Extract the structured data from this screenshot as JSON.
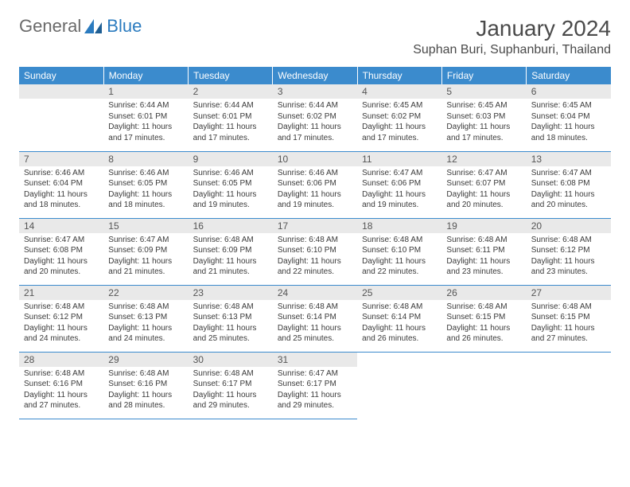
{
  "brand": {
    "part1": "General",
    "part2": "Blue"
  },
  "title": "January 2024",
  "location": "Suphan Buri, Suphanburi, Thailand",
  "colors": {
    "header_bg": "#3b8bcd",
    "header_text": "#ffffff",
    "daynum_bg": "#e9e9e9",
    "text": "#3a3a3a",
    "rule": "#3b8bcd",
    "brand_gray": "#6a6a6a",
    "brand_blue": "#2b7bbf"
  },
  "typography": {
    "title_fontsize": 28,
    "location_fontsize": 16,
    "header_fontsize": 12,
    "body_fontsize": 10
  },
  "weekdays": [
    "Sunday",
    "Monday",
    "Tuesday",
    "Wednesday",
    "Thursday",
    "Friday",
    "Saturday"
  ],
  "weeks": [
    [
      null,
      {
        "n": "1",
        "sr": "Sunrise: 6:44 AM",
        "ss": "Sunset: 6:01 PM",
        "d1": "Daylight: 11 hours",
        "d2": "and 17 minutes."
      },
      {
        "n": "2",
        "sr": "Sunrise: 6:44 AM",
        "ss": "Sunset: 6:01 PM",
        "d1": "Daylight: 11 hours",
        "d2": "and 17 minutes."
      },
      {
        "n": "3",
        "sr": "Sunrise: 6:44 AM",
        "ss": "Sunset: 6:02 PM",
        "d1": "Daylight: 11 hours",
        "d2": "and 17 minutes."
      },
      {
        "n": "4",
        "sr": "Sunrise: 6:45 AM",
        "ss": "Sunset: 6:02 PM",
        "d1": "Daylight: 11 hours",
        "d2": "and 17 minutes."
      },
      {
        "n": "5",
        "sr": "Sunrise: 6:45 AM",
        "ss": "Sunset: 6:03 PM",
        "d1": "Daylight: 11 hours",
        "d2": "and 17 minutes."
      },
      {
        "n": "6",
        "sr": "Sunrise: 6:45 AM",
        "ss": "Sunset: 6:04 PM",
        "d1": "Daylight: 11 hours",
        "d2": "and 18 minutes."
      }
    ],
    [
      {
        "n": "7",
        "sr": "Sunrise: 6:46 AM",
        "ss": "Sunset: 6:04 PM",
        "d1": "Daylight: 11 hours",
        "d2": "and 18 minutes."
      },
      {
        "n": "8",
        "sr": "Sunrise: 6:46 AM",
        "ss": "Sunset: 6:05 PM",
        "d1": "Daylight: 11 hours",
        "d2": "and 18 minutes."
      },
      {
        "n": "9",
        "sr": "Sunrise: 6:46 AM",
        "ss": "Sunset: 6:05 PM",
        "d1": "Daylight: 11 hours",
        "d2": "and 19 minutes."
      },
      {
        "n": "10",
        "sr": "Sunrise: 6:46 AM",
        "ss": "Sunset: 6:06 PM",
        "d1": "Daylight: 11 hours",
        "d2": "and 19 minutes."
      },
      {
        "n": "11",
        "sr": "Sunrise: 6:47 AM",
        "ss": "Sunset: 6:06 PM",
        "d1": "Daylight: 11 hours",
        "d2": "and 19 minutes."
      },
      {
        "n": "12",
        "sr": "Sunrise: 6:47 AM",
        "ss": "Sunset: 6:07 PM",
        "d1": "Daylight: 11 hours",
        "d2": "and 20 minutes."
      },
      {
        "n": "13",
        "sr": "Sunrise: 6:47 AM",
        "ss": "Sunset: 6:08 PM",
        "d1": "Daylight: 11 hours",
        "d2": "and 20 minutes."
      }
    ],
    [
      {
        "n": "14",
        "sr": "Sunrise: 6:47 AM",
        "ss": "Sunset: 6:08 PM",
        "d1": "Daylight: 11 hours",
        "d2": "and 20 minutes."
      },
      {
        "n": "15",
        "sr": "Sunrise: 6:47 AM",
        "ss": "Sunset: 6:09 PM",
        "d1": "Daylight: 11 hours",
        "d2": "and 21 minutes."
      },
      {
        "n": "16",
        "sr": "Sunrise: 6:48 AM",
        "ss": "Sunset: 6:09 PM",
        "d1": "Daylight: 11 hours",
        "d2": "and 21 minutes."
      },
      {
        "n": "17",
        "sr": "Sunrise: 6:48 AM",
        "ss": "Sunset: 6:10 PM",
        "d1": "Daylight: 11 hours",
        "d2": "and 22 minutes."
      },
      {
        "n": "18",
        "sr": "Sunrise: 6:48 AM",
        "ss": "Sunset: 6:10 PM",
        "d1": "Daylight: 11 hours",
        "d2": "and 22 minutes."
      },
      {
        "n": "19",
        "sr": "Sunrise: 6:48 AM",
        "ss": "Sunset: 6:11 PM",
        "d1": "Daylight: 11 hours",
        "d2": "and 23 minutes."
      },
      {
        "n": "20",
        "sr": "Sunrise: 6:48 AM",
        "ss": "Sunset: 6:12 PM",
        "d1": "Daylight: 11 hours",
        "d2": "and 23 minutes."
      }
    ],
    [
      {
        "n": "21",
        "sr": "Sunrise: 6:48 AM",
        "ss": "Sunset: 6:12 PM",
        "d1": "Daylight: 11 hours",
        "d2": "and 24 minutes."
      },
      {
        "n": "22",
        "sr": "Sunrise: 6:48 AM",
        "ss": "Sunset: 6:13 PM",
        "d1": "Daylight: 11 hours",
        "d2": "and 24 minutes."
      },
      {
        "n": "23",
        "sr": "Sunrise: 6:48 AM",
        "ss": "Sunset: 6:13 PM",
        "d1": "Daylight: 11 hours",
        "d2": "and 25 minutes."
      },
      {
        "n": "24",
        "sr": "Sunrise: 6:48 AM",
        "ss": "Sunset: 6:14 PM",
        "d1": "Daylight: 11 hours",
        "d2": "and 25 minutes."
      },
      {
        "n": "25",
        "sr": "Sunrise: 6:48 AM",
        "ss": "Sunset: 6:14 PM",
        "d1": "Daylight: 11 hours",
        "d2": "and 26 minutes."
      },
      {
        "n": "26",
        "sr": "Sunrise: 6:48 AM",
        "ss": "Sunset: 6:15 PM",
        "d1": "Daylight: 11 hours",
        "d2": "and 26 minutes."
      },
      {
        "n": "27",
        "sr": "Sunrise: 6:48 AM",
        "ss": "Sunset: 6:15 PM",
        "d1": "Daylight: 11 hours",
        "d2": "and 27 minutes."
      }
    ],
    [
      {
        "n": "28",
        "sr": "Sunrise: 6:48 AM",
        "ss": "Sunset: 6:16 PM",
        "d1": "Daylight: 11 hours",
        "d2": "and 27 minutes."
      },
      {
        "n": "29",
        "sr": "Sunrise: 6:48 AM",
        "ss": "Sunset: 6:16 PM",
        "d1": "Daylight: 11 hours",
        "d2": "and 28 minutes."
      },
      {
        "n": "30",
        "sr": "Sunrise: 6:48 AM",
        "ss": "Sunset: 6:17 PM",
        "d1": "Daylight: 11 hours",
        "d2": "and 29 minutes."
      },
      {
        "n": "31",
        "sr": "Sunrise: 6:47 AM",
        "ss": "Sunset: 6:17 PM",
        "d1": "Daylight: 11 hours",
        "d2": "and 29 minutes."
      },
      null,
      null,
      null
    ]
  ]
}
